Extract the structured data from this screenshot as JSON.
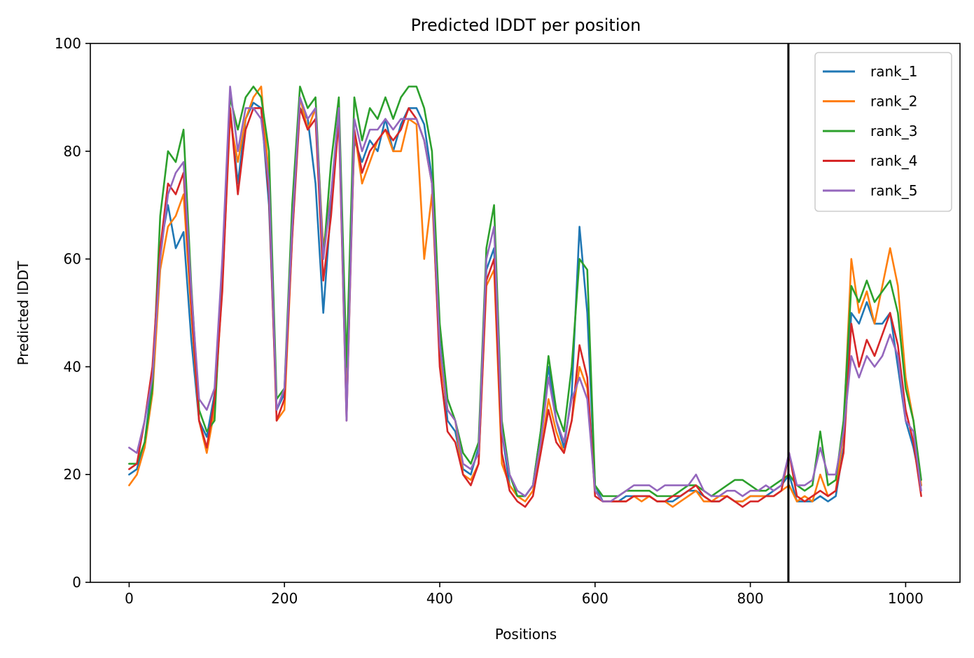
{
  "chart_data": {
    "type": "line",
    "title": "Predicted lDDT per position",
    "xlabel": "Positions",
    "ylabel": "Predicted lDDT",
    "xlim": [
      -50,
      1070
    ],
    "ylim": [
      0,
      100
    ],
    "x_ticks": [
      0,
      200,
      400,
      600,
      800,
      1000
    ],
    "y_ticks": [
      0,
      20,
      40,
      60,
      80,
      100
    ],
    "legend_position": "top-right",
    "vertical_line_x": 849,
    "grid": false,
    "series": [
      {
        "name": "rank_1",
        "color": "#1f77b4",
        "x": [
          0,
          10,
          20,
          30,
          40,
          50,
          60,
          70,
          80,
          90,
          100,
          110,
          120,
          130,
          140,
          150,
          160,
          170,
          180,
          190,
          200,
          210,
          220,
          230,
          240,
          250,
          260,
          270,
          280,
          290,
          300,
          310,
          320,
          330,
          340,
          350,
          360,
          370,
          380,
          390,
          400,
          410,
          420,
          430,
          440,
          450,
          460,
          470,
          480,
          490,
          500,
          510,
          520,
          530,
          540,
          550,
          560,
          570,
          580,
          590,
          600,
          610,
          620,
          630,
          640,
          650,
          660,
          670,
          680,
          690,
          700,
          710,
          720,
          730,
          740,
          750,
          760,
          770,
          780,
          790,
          800,
          810,
          820,
          830,
          840,
          850,
          860,
          870,
          880,
          890,
          900,
          910,
          920,
          930,
          940,
          950,
          960,
          970,
          980,
          990,
          1000,
          1010,
          1020
        ],
        "values": [
          20,
          21,
          26,
          38,
          62,
          70,
          62,
          65,
          45,
          30,
          27,
          35,
          58,
          88,
          74,
          86,
          89,
          88,
          70,
          32,
          35,
          68,
          88,
          86,
          74,
          50,
          70,
          88,
          38,
          82,
          78,
          82,
          80,
          86,
          80,
          85,
          88,
          88,
          85,
          75,
          45,
          30,
          28,
          21,
          20,
          25,
          58,
          62,
          28,
          18,
          16,
          16,
          18,
          28,
          40,
          30,
          25,
          35,
          66,
          50,
          18,
          15,
          15,
          15,
          16,
          16,
          16,
          16,
          15,
          15,
          15,
          16,
          17,
          17,
          16,
          15,
          15,
          16,
          15,
          15,
          16,
          16,
          16,
          17,
          18,
          20,
          15,
          15,
          15,
          16,
          15,
          16,
          25,
          50,
          48,
          52,
          48,
          48,
          50,
          40,
          30,
          25,
          18
        ]
      },
      {
        "name": "rank_2",
        "color": "#ff7f0e",
        "x": [
          0,
          10,
          20,
          30,
          40,
          50,
          60,
          70,
          80,
          90,
          100,
          110,
          120,
          130,
          140,
          150,
          160,
          170,
          180,
          190,
          200,
          210,
          220,
          230,
          240,
          250,
          260,
          270,
          280,
          290,
          300,
          310,
          320,
          330,
          340,
          350,
          360,
          370,
          380,
          390,
          400,
          410,
          420,
          430,
          440,
          450,
          460,
          470,
          480,
          490,
          500,
          510,
          520,
          530,
          540,
          550,
          560,
          570,
          580,
          590,
          600,
          610,
          620,
          630,
          640,
          650,
          660,
          670,
          680,
          690,
          700,
          710,
          720,
          730,
          740,
          750,
          760,
          770,
          780,
          790,
          800,
          810,
          820,
          830,
          840,
          850,
          860,
          870,
          880,
          890,
          900,
          910,
          920,
          930,
          940,
          950,
          960,
          970,
          980,
          990,
          1000,
          1010,
          1020
        ],
        "values": [
          18,
          20,
          25,
          35,
          58,
          66,
          68,
          72,
          50,
          30,
          24,
          32,
          55,
          86,
          78,
          86,
          90,
          92,
          75,
          30,
          32,
          64,
          90,
          84,
          88,
          62,
          72,
          86,
          32,
          84,
          74,
          78,
          82,
          84,
          80,
          80,
          86,
          85,
          60,
          72,
          42,
          32,
          30,
          20,
          19,
          22,
          55,
          58,
          22,
          18,
          16,
          15,
          17,
          24,
          34,
          28,
          24,
          30,
          40,
          36,
          17,
          15,
          15,
          15,
          15,
          16,
          15,
          16,
          15,
          15,
          14,
          15,
          16,
          17,
          15,
          15,
          16,
          16,
          15,
          15,
          16,
          16,
          16,
          16,
          17,
          18,
          15,
          16,
          15,
          20,
          16,
          17,
          28,
          60,
          50,
          54,
          48,
          55,
          62,
          55,
          38,
          30,
          18
        ]
      },
      {
        "name": "rank_3",
        "color": "#2ca02c",
        "x": [
          0,
          10,
          20,
          30,
          40,
          50,
          60,
          70,
          80,
          90,
          100,
          110,
          120,
          130,
          140,
          150,
          160,
          170,
          180,
          190,
          200,
          210,
          220,
          230,
          240,
          250,
          260,
          270,
          280,
          290,
          300,
          310,
          320,
          330,
          340,
          350,
          360,
          370,
          380,
          390,
          400,
          410,
          420,
          430,
          440,
          450,
          460,
          470,
          480,
          490,
          500,
          510,
          520,
          530,
          540,
          550,
          560,
          570,
          580,
          590,
          600,
          610,
          620,
          630,
          640,
          650,
          660,
          670,
          680,
          690,
          700,
          710,
          720,
          730,
          740,
          750,
          760,
          770,
          780,
          790,
          800,
          810,
          820,
          830,
          840,
          850,
          860,
          870,
          880,
          890,
          900,
          910,
          920,
          930,
          940,
          950,
          960,
          970,
          980,
          990,
          1000,
          1010,
          1020
        ],
        "values": [
          22,
          22,
          26,
          36,
          68,
          80,
          78,
          84,
          55,
          32,
          28,
          30,
          58,
          90,
          84,
          90,
          92,
          90,
          80,
          34,
          36,
          70,
          92,
          88,
          90,
          60,
          78,
          90,
          40,
          90,
          82,
          88,
          86,
          90,
          86,
          90,
          92,
          92,
          88,
          80,
          48,
          34,
          30,
          24,
          22,
          26,
          62,
          70,
          30,
          20,
          16,
          16,
          18,
          28,
          42,
          32,
          28,
          40,
          60,
          58,
          18,
          16,
          16,
          16,
          17,
          17,
          17,
          17,
          16,
          16,
          16,
          17,
          18,
          18,
          17,
          16,
          17,
          18,
          19,
          19,
          18,
          17,
          17,
          18,
          19,
          20,
          18,
          17,
          18,
          28,
          18,
          19,
          30,
          55,
          52,
          56,
          52,
          54,
          56,
          50,
          36,
          30,
          19
        ]
      },
      {
        "name": "rank_4",
        "color": "#d62728",
        "x": [
          0,
          10,
          20,
          30,
          40,
          50,
          60,
          70,
          80,
          90,
          100,
          110,
          120,
          130,
          140,
          150,
          160,
          170,
          180,
          190,
          200,
          210,
          220,
          230,
          240,
          250,
          260,
          270,
          280,
          290,
          300,
          310,
          320,
          330,
          340,
          350,
          360,
          370,
          380,
          390,
          400,
          410,
          420,
          430,
          440,
          450,
          460,
          470,
          480,
          490,
          500,
          510,
          520,
          530,
          540,
          550,
          560,
          570,
          580,
          590,
          600,
          610,
          620,
          630,
          640,
          650,
          660,
          670,
          680,
          690,
          700,
          710,
          720,
          730,
          740,
          750,
          760,
          770,
          780,
          790,
          800,
          810,
          820,
          830,
          840,
          850,
          860,
          870,
          880,
          890,
          900,
          910,
          920,
          930,
          940,
          950,
          960,
          970,
          980,
          990,
          1000,
          1010,
          1020
        ],
        "values": [
          21,
          22,
          30,
          40,
          62,
          74,
          72,
          76,
          52,
          30,
          25,
          34,
          54,
          88,
          72,
          84,
          88,
          88,
          72,
          30,
          34,
          64,
          88,
          84,
          86,
          56,
          68,
          86,
          30,
          84,
          76,
          80,
          82,
          84,
          82,
          84,
          88,
          86,
          82,
          74,
          40,
          28,
          26,
          20,
          18,
          22,
          56,
          60,
          24,
          17,
          15,
          14,
          16,
          24,
          32,
          26,
          24,
          30,
          44,
          38,
          16,
          15,
          15,
          15,
          15,
          16,
          16,
          16,
          15,
          15,
          16,
          16,
          17,
          18,
          16,
          15,
          15,
          16,
          15,
          14,
          15,
          15,
          16,
          16,
          17,
          24,
          16,
          15,
          16,
          17,
          16,
          17,
          24,
          48,
          40,
          45,
          42,
          46,
          50,
          44,
          32,
          26,
          16
        ]
      },
      {
        "name": "rank_5",
        "color": "#9467bd",
        "x": [
          0,
          10,
          20,
          30,
          40,
          50,
          60,
          70,
          80,
          90,
          100,
          110,
          120,
          130,
          140,
          150,
          160,
          170,
          180,
          190,
          200,
          210,
          220,
          230,
          240,
          250,
          260,
          270,
          280,
          290,
          300,
          310,
          320,
          330,
          340,
          350,
          360,
          370,
          380,
          390,
          400,
          410,
          420,
          430,
          440,
          450,
          460,
          470,
          480,
          490,
          500,
          510,
          520,
          530,
          540,
          550,
          560,
          570,
          580,
          590,
          600,
          610,
          620,
          630,
          640,
          650,
          660,
          670,
          680,
          690,
          700,
          710,
          720,
          730,
          740,
          750,
          760,
          770,
          780,
          790,
          800,
          810,
          820,
          830,
          840,
          850,
          860,
          870,
          880,
          890,
          900,
          910,
          920,
          930,
          940,
          950,
          960,
          970,
          980,
          990,
          1000,
          1010,
          1020
        ],
        "values": [
          25,
          24,
          30,
          38,
          60,
          72,
          76,
          78,
          54,
          34,
          32,
          36,
          60,
          92,
          80,
          88,
          88,
          86,
          74,
          32,
          36,
          66,
          90,
          86,
          88,
          60,
          72,
          88,
          30,
          86,
          80,
          84,
          84,
          86,
          84,
          86,
          86,
          86,
          82,
          74,
          44,
          32,
          30,
          22,
          21,
          24,
          60,
          66,
          28,
          20,
          17,
          16,
          18,
          26,
          38,
          30,
          26,
          34,
          38,
          34,
          17,
          15,
          15,
          16,
          17,
          18,
          18,
          18,
          17,
          18,
          18,
          18,
          18,
          20,
          17,
          16,
          16,
          17,
          17,
          16,
          17,
          17,
          18,
          17,
          18,
          24,
          18,
          18,
          19,
          25,
          20,
          20,
          28,
          42,
          38,
          42,
          40,
          42,
          46,
          42,
          30,
          28,
          17
        ]
      }
    ]
  }
}
